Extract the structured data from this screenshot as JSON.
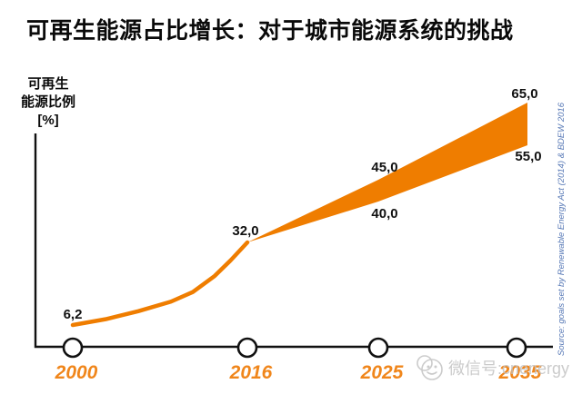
{
  "title": "可再生能源占比增长：对于城市能源系统的挑战",
  "y_axis": {
    "label_lines": [
      "可再生",
      "能源比例",
      "[%]"
    ]
  },
  "source_note": "Source: goals set  by Renewable Energy Act (2014) & BDEW 2016",
  "watermark": {
    "icon": "smiley-face-icon",
    "text": "微信号:cnenergy"
  },
  "colors": {
    "band_orange": "#EF7D00",
    "line_orange": "#EF7D00",
    "year_label_orange": "#F0861B",
    "value_label_black": "#111111",
    "axis_black": "#111111",
    "source_blue": "#5577B5",
    "watermark_gray": "#C3C3C3"
  },
  "chart_data": {
    "type": "area",
    "title": "可再生能源占比增长：对于城市能源系统的挑战",
    "ylabel": "可再生能源比例 [%]",
    "xlabel": "",
    "x_ticks": [
      "2000",
      "2016",
      "2025",
      "2035"
    ],
    "ylim": [
      0,
      70
    ],
    "grid": false,
    "legend": false,
    "history_line": {
      "x": [
        2000,
        2003,
        2006,
        2009,
        2011,
        2013,
        2014.5,
        2016
      ],
      "y": [
        6.2,
        8,
        10.5,
        13.5,
        16.5,
        21.5,
        26.5,
        32
      ]
    },
    "target_band": {
      "x": [
        2016,
        2025,
        2035
      ],
      "upper": [
        32,
        45,
        65
      ],
      "lower": [
        32,
        40,
        55
      ]
    },
    "point_labels": [
      {
        "id": "v2000",
        "text": "6,2"
      },
      {
        "id": "v2016",
        "text": "32,0"
      },
      {
        "id": "v2025_hi",
        "text": "45,0"
      },
      {
        "id": "v2025_lo",
        "text": "40,0"
      },
      {
        "id": "v2035_hi",
        "text": "65,0"
      },
      {
        "id": "v2035_lo",
        "text": "55,0"
      }
    ]
  }
}
